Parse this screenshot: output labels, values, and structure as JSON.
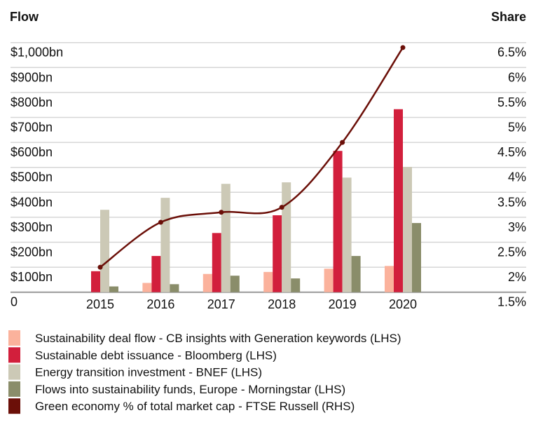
{
  "chart_data": {
    "type": "bar",
    "left_axis_title": "Flow",
    "right_axis_title": "Share",
    "categories": [
      "2015",
      "2016",
      "2017",
      "2018",
      "2019",
      "2020"
    ],
    "left_ticks": [
      "0",
      "$100bn",
      "$200bn",
      "$300bn",
      "$400bn",
      "$500bn",
      "$600bn",
      "$700bn",
      "$800bn",
      "$900bn",
      "$1,000bn"
    ],
    "right_ticks": [
      "1.5%",
      "2%",
      "2.5%",
      "3%",
      "3.5%",
      "4%",
      "4.5%",
      "5%",
      "5.5%",
      "6%",
      "6.5%"
    ],
    "ylim": [
      0,
      1000
    ],
    "ylim_right": [
      1.5,
      6.5
    ],
    "grid": true,
    "legend_position": "bottom",
    "series": [
      {
        "name": "Sustainability deal flow - CB insights with Generation keywords (LHS)",
        "type": "bar",
        "color": "#FBB29C",
        "values": [
          0,
          37,
          73,
          81,
          94,
          105
        ]
      },
      {
        "name": "Sustainable debt issuance - Bloomberg (LHS)",
        "type": "bar",
        "color": "#D21F3C",
        "values": [
          84,
          145,
          237,
          308,
          566,
          733
        ]
      },
      {
        "name": "Energy transition investment - BNEF (LHS)",
        "type": "bar",
        "color": "#CCC9B6",
        "values": [
          330,
          378,
          434,
          440,
          459,
          502
        ]
      },
      {
        "name": "Flows into sustainability funds, Europe - Morningstar (LHS)",
        "type": "bar",
        "color": "#8A8D6A",
        "values": [
          23,
          32,
          66,
          55,
          145,
          277
        ]
      },
      {
        "name": "Green economy % of total market cap - FTSE Russell (RHS)",
        "type": "line",
        "color": "#6B0F08",
        "values": [
          2.0,
          2.9,
          3.1,
          3.2,
          4.5,
          6.4
        ]
      }
    ]
  }
}
